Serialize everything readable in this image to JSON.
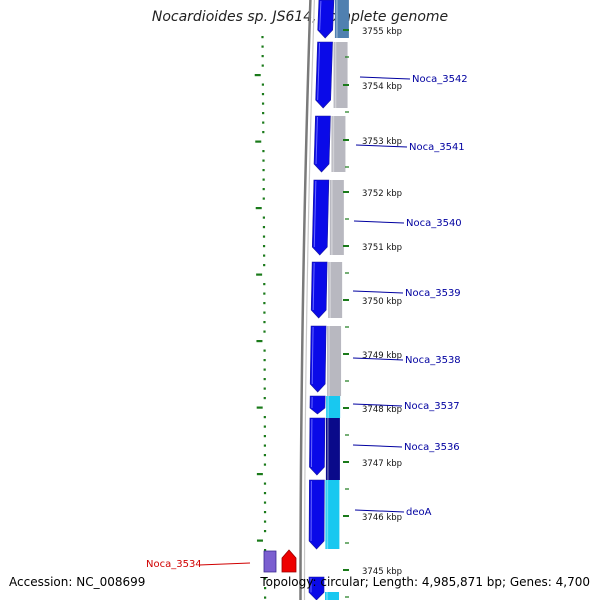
{
  "title": "Nocardioides sp. JS614, complete genome",
  "footer": {
    "accession": "Accession: NC_008699",
    "summary": "Topology: circular; Length: 4,985,871 bp; Genes: 4,700"
  },
  "colors": {
    "forward_gene": "#0a0ae8",
    "homolog_gray": "#b8b8c0",
    "homolog_cyan": "#18c8f0",
    "homolog_navy": "#0a0a8a",
    "homolog_steel": "#5080b0",
    "label_blue": "#0000a0",
    "label_red": "#d00000",
    "backbone": "#7a7a7a",
    "tick_green": "#1a7a1a"
  },
  "kbp_ticks": [
    "3755 kbp",
    "3754 kbp",
    "3753 kbp",
    "3752 kbp",
    "3751 kbp",
    "3750 kbp",
    "3749 kbp",
    "3748 kbp",
    "3747 kbp",
    "3746 kbp",
    "3745 kbp"
  ],
  "gene_labels": [
    {
      "text": "Noca_3542",
      "color": "blue"
    },
    {
      "text": "Noca_3541",
      "color": "blue"
    },
    {
      "text": "Noca_3540",
      "color": "blue"
    },
    {
      "text": "Noca_3539",
      "color": "blue"
    },
    {
      "text": "Noca_3538",
      "color": "blue"
    },
    {
      "text": "Noca_3537",
      "color": "blue"
    },
    {
      "text": "Noca_3536",
      "color": "blue"
    },
    {
      "text": "deoA",
      "color": "blue"
    },
    {
      "text": "Noca_3534",
      "color": "red"
    }
  ]
}
